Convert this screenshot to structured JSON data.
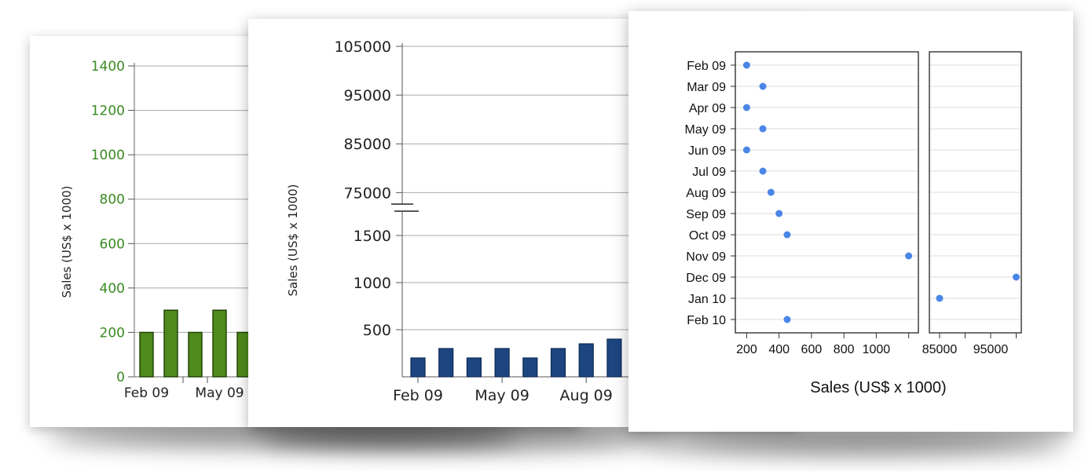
{
  "colors": {
    "green_bar": "#4e8a1c",
    "green_text": "#3a8a22",
    "blue_bar": "#1d4580",
    "dot": "#4a86e8"
  },
  "chart_data": [
    {
      "type": "bar",
      "ylabel": "Sales (US$ x 1000)",
      "ylim": [
        0,
        1400
      ],
      "yticks": [
        "1400",
        "1200",
        "1000",
        "800",
        "600",
        "400",
        "200",
        "0"
      ],
      "xtick_labels": [
        "Feb 09",
        "May 09"
      ],
      "categories": [
        "Feb 09",
        "Mar 09",
        "Apr 09",
        "May 09",
        "Jun 09"
      ],
      "values": [
        200,
        300,
        200,
        300,
        200
      ],
      "grid": true
    },
    {
      "type": "bar",
      "ylabel": "Sales (US$ x 1000)",
      "broken_axis": true,
      "lower_range": [
        0,
        1750
      ],
      "upper_range": [
        72000,
        105000
      ],
      "yticks": [
        "105000",
        "95000",
        "85000",
        "75000",
        "1500",
        "1000",
        "500"
      ],
      "xtick_labels": [
        "Feb 09",
        "May 09",
        "Aug 09"
      ],
      "categories": [
        "Feb 09",
        "Mar 09",
        "Apr 09",
        "May 09",
        "Jun 09",
        "Jul 09",
        "Aug 09",
        "Sep 09"
      ],
      "values": [
        200,
        300,
        200,
        300,
        200,
        300,
        350,
        400
      ],
      "grid": true
    },
    {
      "type": "scatter",
      "xlabel": "Sales (US$ x 1000)",
      "categories": [
        "Feb 09",
        "Mar 09",
        "Apr 09",
        "May 09",
        "Jun 09",
        "Jul 09",
        "Aug 09",
        "Sep 09",
        "Oct 09",
        "Nov 09",
        "Dec 09",
        "Jan 10",
        "Feb 10"
      ],
      "values": [
        200,
        300,
        200,
        300,
        200,
        300,
        350,
        400,
        450,
        1200,
        100000,
        85000,
        450
      ],
      "panels": [
        {
          "xlim": [
            130,
            1260
          ],
          "ticks": [
            "200",
            "400",
            "600",
            "800",
            "1000"
          ]
        },
        {
          "xlim": [
            83000,
            101000
          ],
          "ticks": [
            "85000",
            "95000"
          ]
        }
      ],
      "grid": true
    }
  ]
}
